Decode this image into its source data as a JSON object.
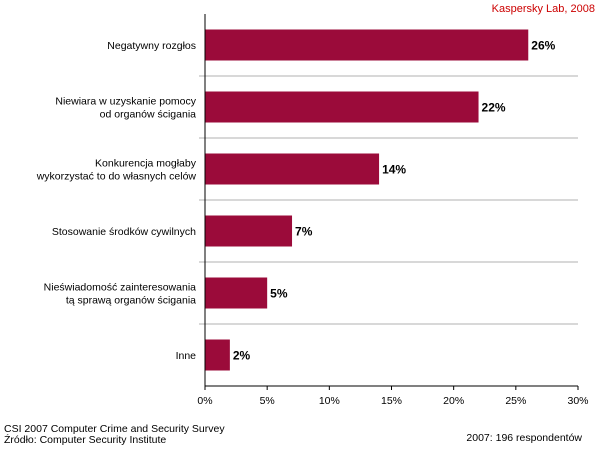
{
  "credit": "Kaspersky Lab, 2008",
  "footer": {
    "source_line1": "CSI 2007 Computer Crime and Security Survey",
    "source_line2": "Źródło:  Computer Security Institute",
    "respondents": "2007: 196  respondentów"
  },
  "chart_data": {
    "type": "bar",
    "orientation": "horizontal",
    "categories": [
      [
        "Negatywny rozgłos"
      ],
      [
        "Niewiara w uzyskanie pomocy",
        "od organów ścigania"
      ],
      [
        "Konkurencja mogłaby",
        "wykorzystać to do własnych celów"
      ],
      [
        "Stosowanie środków cywilnych"
      ],
      [
        "Nieświadomość zainteresowania",
        "tą sprawą organów ścigania"
      ],
      [
        "Inne"
      ]
    ],
    "values": [
      26,
      22,
      14,
      7,
      5,
      2
    ],
    "value_labels": [
      "26%",
      "22%",
      "14%",
      "7%",
      "5%",
      "2%"
    ],
    "xlim": [
      0,
      30
    ],
    "xticks": [
      0,
      5,
      10,
      15,
      20,
      25,
      30
    ],
    "xtick_labels": [
      "0%",
      "5%",
      "10%",
      "15%",
      "20%",
      "25%",
      "30%"
    ],
    "grid": "horizontal separators between categories",
    "colors": {
      "bar": "#9b0b3a",
      "separator": "#b0b0b0",
      "axis": "#000000"
    }
  }
}
